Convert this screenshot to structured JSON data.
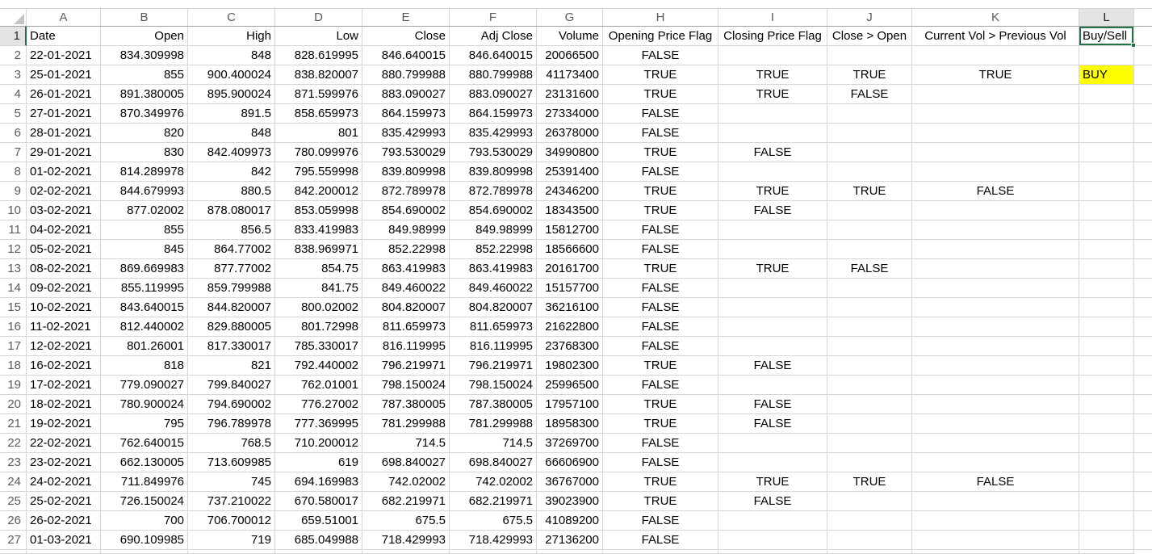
{
  "sheet": {
    "column_letters": [
      "A",
      "B",
      "C",
      "D",
      "E",
      "F",
      "G",
      "H",
      "I",
      "J",
      "K",
      "L"
    ],
    "selected_cell": "L1",
    "highlighted_cell": {
      "cell": "L3",
      "color": "#FFFF00"
    },
    "colors": {
      "selection_green": "#217346",
      "highlight_yellow": "#FFFF00",
      "selected_header_bg": "#E4E4E4",
      "gridline": "#D6D6D6"
    },
    "rows": [
      {
        "n": "1",
        "cells": [
          "Date",
          "Open",
          "High",
          "Low",
          "Close",
          "Adj Close",
          "Volume",
          "Opening Price Flag",
          "Closing Price Flag",
          "Close > Open",
          "Current Vol > Previous Vol",
          "Buy/Sell"
        ]
      },
      {
        "n": "2",
        "cells": [
          "22-01-2021",
          "834.309998",
          "848",
          "828.619995",
          "846.640015",
          "846.640015",
          "20066500",
          "FALSE",
          "",
          "",
          "",
          ""
        ]
      },
      {
        "n": "3",
        "cells": [
          "25-01-2021",
          "855",
          "900.400024",
          "838.820007",
          "880.799988",
          "880.799988",
          "41173400",
          "TRUE",
          "TRUE",
          "TRUE",
          "TRUE",
          "BUY"
        ]
      },
      {
        "n": "4",
        "cells": [
          "26-01-2021",
          "891.380005",
          "895.900024",
          "871.599976",
          "883.090027",
          "883.090027",
          "23131600",
          "TRUE",
          "TRUE",
          "FALSE",
          "",
          ""
        ]
      },
      {
        "n": "5",
        "cells": [
          "27-01-2021",
          "870.349976",
          "891.5",
          "858.659973",
          "864.159973",
          "864.159973",
          "27334000",
          "FALSE",
          "",
          "",
          "",
          ""
        ]
      },
      {
        "n": "6",
        "cells": [
          "28-01-2021",
          "820",
          "848",
          "801",
          "835.429993",
          "835.429993",
          "26378000",
          "FALSE",
          "",
          "",
          "",
          ""
        ]
      },
      {
        "n": "7",
        "cells": [
          "29-01-2021",
          "830",
          "842.409973",
          "780.099976",
          "793.530029",
          "793.530029",
          "34990800",
          "TRUE",
          "FALSE",
          "",
          "",
          ""
        ]
      },
      {
        "n": "8",
        "cells": [
          "01-02-2021",
          "814.289978",
          "842",
          "795.559998",
          "839.809998",
          "839.809998",
          "25391400",
          "FALSE",
          "",
          "",
          "",
          ""
        ]
      },
      {
        "n": "9",
        "cells": [
          "02-02-2021",
          "844.679993",
          "880.5",
          "842.200012",
          "872.789978",
          "872.789978",
          "24346200",
          "TRUE",
          "TRUE",
          "TRUE",
          "FALSE",
          ""
        ]
      },
      {
        "n": "10",
        "cells": [
          "03-02-2021",
          "877.02002",
          "878.080017",
          "853.059998",
          "854.690002",
          "854.690002",
          "18343500",
          "TRUE",
          "FALSE",
          "",
          "",
          ""
        ]
      },
      {
        "n": "11",
        "cells": [
          "04-02-2021",
          "855",
          "856.5",
          "833.419983",
          "849.98999",
          "849.98999",
          "15812700",
          "FALSE",
          "",
          "",
          "",
          ""
        ]
      },
      {
        "n": "12",
        "cells": [
          "05-02-2021",
          "845",
          "864.77002",
          "838.969971",
          "852.22998",
          "852.22998",
          "18566600",
          "FALSE",
          "",
          "",
          "",
          ""
        ]
      },
      {
        "n": "13",
        "cells": [
          "08-02-2021",
          "869.669983",
          "877.77002",
          "854.75",
          "863.419983",
          "863.419983",
          "20161700",
          "TRUE",
          "TRUE",
          "FALSE",
          "",
          ""
        ]
      },
      {
        "n": "14",
        "cells": [
          "09-02-2021",
          "855.119995",
          "859.799988",
          "841.75",
          "849.460022",
          "849.460022",
          "15157700",
          "FALSE",
          "",
          "",
          "",
          ""
        ]
      },
      {
        "n": "15",
        "cells": [
          "10-02-2021",
          "843.640015",
          "844.820007",
          "800.02002",
          "804.820007",
          "804.820007",
          "36216100",
          "FALSE",
          "",
          "",
          "",
          ""
        ]
      },
      {
        "n": "16",
        "cells": [
          "11-02-2021",
          "812.440002",
          "829.880005",
          "801.72998",
          "811.659973",
          "811.659973",
          "21622800",
          "FALSE",
          "",
          "",
          "",
          ""
        ]
      },
      {
        "n": "17",
        "cells": [
          "12-02-2021",
          "801.26001",
          "817.330017",
          "785.330017",
          "816.119995",
          "816.119995",
          "23768300",
          "FALSE",
          "",
          "",
          "",
          ""
        ]
      },
      {
        "n": "18",
        "cells": [
          "16-02-2021",
          "818",
          "821",
          "792.440002",
          "796.219971",
          "796.219971",
          "19802300",
          "TRUE",
          "FALSE",
          "",
          "",
          ""
        ]
      },
      {
        "n": "19",
        "cells": [
          "17-02-2021",
          "779.090027",
          "799.840027",
          "762.01001",
          "798.150024",
          "798.150024",
          "25996500",
          "FALSE",
          "",
          "",
          "",
          ""
        ]
      },
      {
        "n": "20",
        "cells": [
          "18-02-2021",
          "780.900024",
          "794.690002",
          "776.27002",
          "787.380005",
          "787.380005",
          "17957100",
          "TRUE",
          "FALSE",
          "",
          "",
          ""
        ]
      },
      {
        "n": "21",
        "cells": [
          "19-02-2021",
          "795",
          "796.789978",
          "777.369995",
          "781.299988",
          "781.299988",
          "18958300",
          "TRUE",
          "FALSE",
          "",
          "",
          ""
        ]
      },
      {
        "n": "22",
        "cells": [
          "22-02-2021",
          "762.640015",
          "768.5",
          "710.200012",
          "714.5",
          "714.5",
          "37269700",
          "FALSE",
          "",
          "",
          "",
          ""
        ]
      },
      {
        "n": "23",
        "cells": [
          "23-02-2021",
          "662.130005",
          "713.609985",
          "619",
          "698.840027",
          "698.840027",
          "66606900",
          "FALSE",
          "",
          "",
          "",
          ""
        ]
      },
      {
        "n": "24",
        "cells": [
          "24-02-2021",
          "711.849976",
          "745",
          "694.169983",
          "742.02002",
          "742.02002",
          "36767000",
          "TRUE",
          "TRUE",
          "TRUE",
          "FALSE",
          ""
        ]
      },
      {
        "n": "25",
        "cells": [
          "25-02-2021",
          "726.150024",
          "737.210022",
          "670.580017",
          "682.219971",
          "682.219971",
          "39023900",
          "TRUE",
          "FALSE",
          "",
          "",
          ""
        ]
      },
      {
        "n": "26",
        "cells": [
          "26-02-2021",
          "700",
          "706.700012",
          "659.51001",
          "675.5",
          "675.5",
          "41089200",
          "FALSE",
          "",
          "",
          "",
          ""
        ]
      },
      {
        "n": "27",
        "cells": [
          "01-03-2021",
          "690.109985",
          "719",
          "685.049988",
          "718.429993",
          "718.429993",
          "27136200",
          "FALSE",
          "",
          "",
          "",
          ""
        ]
      }
    ]
  }
}
